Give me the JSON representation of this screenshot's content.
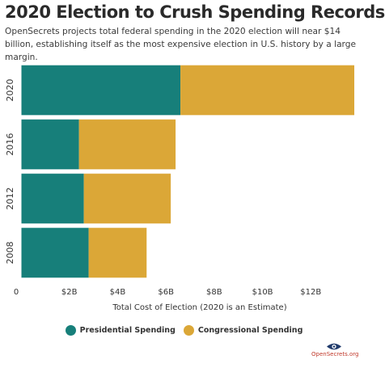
{
  "title": "2020 Election to Crush Spending Records",
  "subtitle": "OpenSecrets projects total federal spending in the 2020 election will near $14 billion, establishing itself as the most expensive election in U.S. history by a large margin.",
  "colors": {
    "presidential": "#177f7a",
    "congressional": "#dba737"
  },
  "legend": {
    "presidential": "Presidential Spending",
    "congressional": "Congressional Spending"
  },
  "logo": {
    "text": "OpenSecrets.org"
  },
  "chart_data": {
    "type": "bar",
    "orientation": "horizontal",
    "stacked": true,
    "categories": [
      "2020",
      "2016",
      "2012",
      "2008"
    ],
    "series": [
      {
        "name": "Presidential Spending",
        "values": [
          6.6,
          2.4,
          2.6,
          2.8
        ]
      },
      {
        "name": "Congressional Spending",
        "values": [
          7.2,
          4.0,
          3.6,
          2.4
        ]
      }
    ],
    "xlabel": "Total Cost of Election (2020 is an Estimate)",
    "ylabel": "",
    "xlim": [
      0,
      14
    ],
    "xticks": [
      0,
      2,
      4,
      6,
      8,
      10,
      12
    ],
    "xtick_labels": [
      "0",
      "$2B",
      "$4B",
      "$6B",
      "$8B",
      "$10B",
      "$12B"
    ],
    "grid": false,
    "legend_position": "bottom-center"
  }
}
